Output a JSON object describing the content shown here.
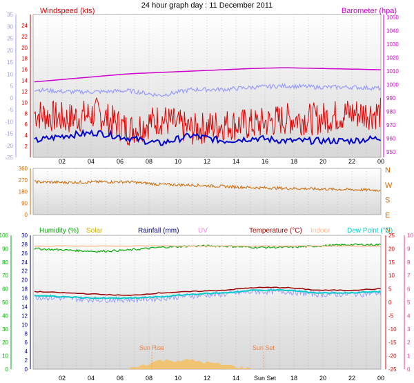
{
  "title": "24 hour graph day : 11 December 2011",
  "x_tick_labels": [
    "02",
    "04",
    "06",
    "08",
    "10",
    "12",
    "14",
    "16",
    "18",
    "20",
    "22",
    "00"
  ],
  "colors": {
    "windspeed": "#e00000",
    "wind_avg": "#0000cc",
    "temperature_axis": "#cc0000",
    "barometer": "#cc00cc",
    "wind_dir": "#cc6600",
    "humidity": "#00aa00",
    "solar": "#ccaa00",
    "rainfall": "#000080",
    "uv": "#ee88ee",
    "temperature": "#990000",
    "indoor": "#ffbb99",
    "dewpoint": "#00cccc",
    "lavender": "#9999ff",
    "pink_axis": "#ee3388"
  },
  "chart_data": [
    {
      "type": "line",
      "name": "wind-barometer-temperature",
      "legend": {
        "left": "Windspeed (kts)",
        "right": "Barometer (hpa)"
      },
      "left_outer_axis": {
        "ticks": [
          "-25",
          "-20",
          "-15",
          "-10",
          "-5",
          "0",
          "5",
          "10",
          "15",
          "20",
          "25",
          "30",
          "35"
        ],
        "ylim": [
          -25,
          35
        ]
      },
      "left_inner_axis": {
        "ticks": [
          "2",
          "4",
          "6",
          "8",
          "10",
          "12",
          "14",
          "16",
          "18",
          "20",
          "22",
          "24"
        ],
        "ylim": [
          0,
          26
        ]
      },
      "right_axis": {
        "ticks": [
          "950",
          "960",
          "970",
          "980",
          "990",
          "1000",
          "1010",
          "1020",
          "1030",
          "1040",
          "1050"
        ],
        "ylim": [
          946,
          1052
        ]
      },
      "series": [
        {
          "key": "barometer",
          "values": [
            1002,
            1004,
            1006,
            1008,
            1009,
            1010,
            1011,
            1012,
            1012.5,
            1012,
            1011.5,
            1011
          ]
        },
        {
          "key": "temperature_lavender",
          "values": [
            3.5,
            2.5,
            2.5,
            3,
            1,
            3.5,
            3.5,
            4.5,
            5,
            4.5,
            4.5,
            4
          ]
        },
        {
          "key": "wind_gust",
          "values": [
            8,
            7,
            8,
            5,
            7,
            5,
            6,
            6,
            7,
            7,
            8,
            8
          ]
        },
        {
          "key": "wind_avg",
          "values": [
            3,
            4,
            4.5,
            3.5,
            2.5,
            4,
            3,
            3.5,
            3,
            3,
            3,
            3.5
          ]
        }
      ]
    },
    {
      "type": "line",
      "name": "wind-direction",
      "left_axis": {
        "ticks": [
          "0",
          "90",
          "180",
          "270",
          "360"
        ],
        "ylim": [
          0,
          360
        ]
      },
      "right_labels": [
        "N",
        "W",
        "S",
        "E",
        "N"
      ],
      "series": [
        {
          "key": "wind_dir",
          "values": [
            255,
            250,
            255,
            255,
            235,
            230,
            220,
            210,
            205,
            200,
            195,
            190
          ]
        }
      ]
    },
    {
      "type": "line",
      "name": "humidity-temperature",
      "legend": [
        {
          "label": "Humidity (%)",
          "color": "humidity"
        },
        {
          "label": "Solar",
          "color": "solar"
        },
        {
          "label": "Rainfall (mm)",
          "color": "rainfall"
        },
        {
          "label": "UV",
          "color": "uv"
        },
        {
          "label": "Temperature (°C)",
          "color": "temperature"
        },
        {
          "label": "Indoor",
          "color": "indoor"
        },
        {
          "label": "Dew Point (°C)",
          "color": "dewpoint"
        }
      ],
      "humidity_axis": {
        "ticks": [
          "0",
          "10",
          "20",
          "30",
          "40",
          "50",
          "60",
          "70",
          "80",
          "90",
          "100"
        ],
        "ylim": [
          0,
          100
        ]
      },
      "rainfall_axis": {
        "ticks": [
          "0",
          "2",
          "4",
          "6",
          "8",
          "10",
          "12",
          "14",
          "16",
          "18",
          "20",
          "22",
          "24",
          "26",
          "28",
          "30"
        ],
        "ylim": [
          0,
          30
        ]
      },
      "temperature_axis": {
        "ticks": [
          "-25",
          "-20",
          "-15",
          "-10",
          "-5",
          "0",
          "5",
          "10",
          "15",
          "20",
          "25"
        ],
        "ylim": [
          -25,
          25
        ]
      },
      "uv_axis": {
        "ticks": [
          "0",
          "1",
          "2",
          "3",
          "4",
          "5",
          "6",
          "7",
          "8",
          "9",
          "10"
        ],
        "ylim": [
          0,
          10
        ]
      },
      "annotations": [
        {
          "label": "Sun Rise",
          "x": 8.2
        },
        {
          "label": "Sun Set",
          "x": 15.9
        }
      ],
      "x_tick_labels": [
        "02",
        "04",
        "06",
        "08",
        "10",
        "12",
        "14",
        "Sun Set",
        "18",
        "20",
        "22",
        "00"
      ],
      "series": [
        {
          "key": "humidity",
          "values": [
            90,
            89,
            88,
            89,
            91,
            92,
            92,
            91,
            91,
            92,
            93,
            93
          ]
        },
        {
          "key": "indoor",
          "values": [
            21,
            21,
            21,
            21,
            21,
            21,
            21,
            21,
            21,
            21,
            21,
            21
          ]
        },
        {
          "key": "temperature",
          "values": [
            4,
            3.5,
            3,
            2.5,
            3.5,
            4,
            4.5,
            5.5,
            5.5,
            4.5,
            4.5,
            5
          ]
        },
        {
          "key": "dewpoint",
          "values": [
            2.5,
            2,
            1.5,
            1.5,
            2,
            3,
            3.5,
            4.5,
            4.5,
            3.5,
            3.5,
            4
          ]
        },
        {
          "key": "temperature_lavender",
          "values": [
            2,
            1.5,
            1,
            1,
            1.5,
            2.5,
            3,
            4,
            4,
            3,
            3,
            3.5
          ]
        },
        {
          "key": "solar",
          "values": [
            0,
            0,
            0,
            0,
            2,
            2,
            1,
            0,
            0,
            0,
            0,
            0
          ]
        }
      ]
    }
  ]
}
